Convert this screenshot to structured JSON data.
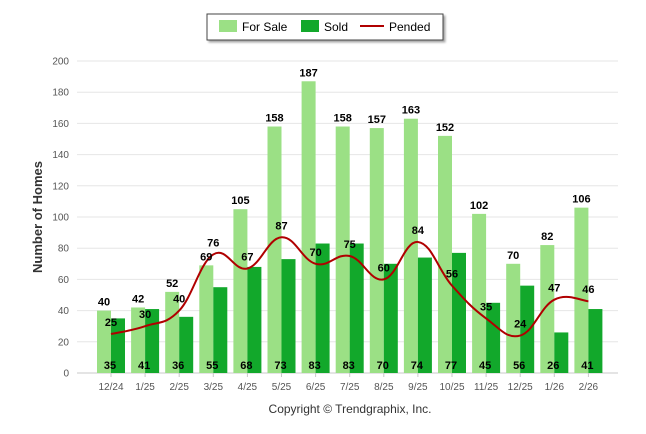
{
  "chart_data": {
    "type": "bar",
    "categories": [
      "12/24",
      "1/25",
      "2/25",
      "3/25",
      "4/25",
      "5/25",
      "6/25",
      "7/25",
      "8/25",
      "9/25",
      "10/25",
      "11/25",
      "12/25",
      "1/26",
      "2/26"
    ],
    "series": [
      {
        "name": "For Sale",
        "kind": "bar",
        "color": "#9be085",
        "values": [
          40,
          42,
          52,
          69,
          105,
          158,
          187,
          158,
          157,
          163,
          152,
          102,
          70,
          82,
          106
        ]
      },
      {
        "name": "Sold",
        "kind": "bar",
        "color": "#12a82b",
        "values": [
          35,
          41,
          36,
          55,
          68,
          73,
          83,
          83,
          70,
          74,
          77,
          45,
          56,
          26,
          41
        ]
      },
      {
        "name": "Pended",
        "kind": "line",
        "color": "#b00000",
        "values": [
          25,
          30,
          40,
          76,
          67,
          87,
          70,
          75,
          60,
          84,
          56,
          35,
          24,
          47,
          46
        ]
      }
    ],
    "ylabel": "Number of Homes",
    "ylim": [
      0,
      200
    ],
    "yticks": [
      0,
      20,
      40,
      60,
      80,
      100,
      120,
      140,
      160,
      180,
      200
    ],
    "legend_position": "top-center",
    "grid": true
  },
  "footer": {
    "copyright": "Copyright © Trendgraphix, Inc."
  }
}
